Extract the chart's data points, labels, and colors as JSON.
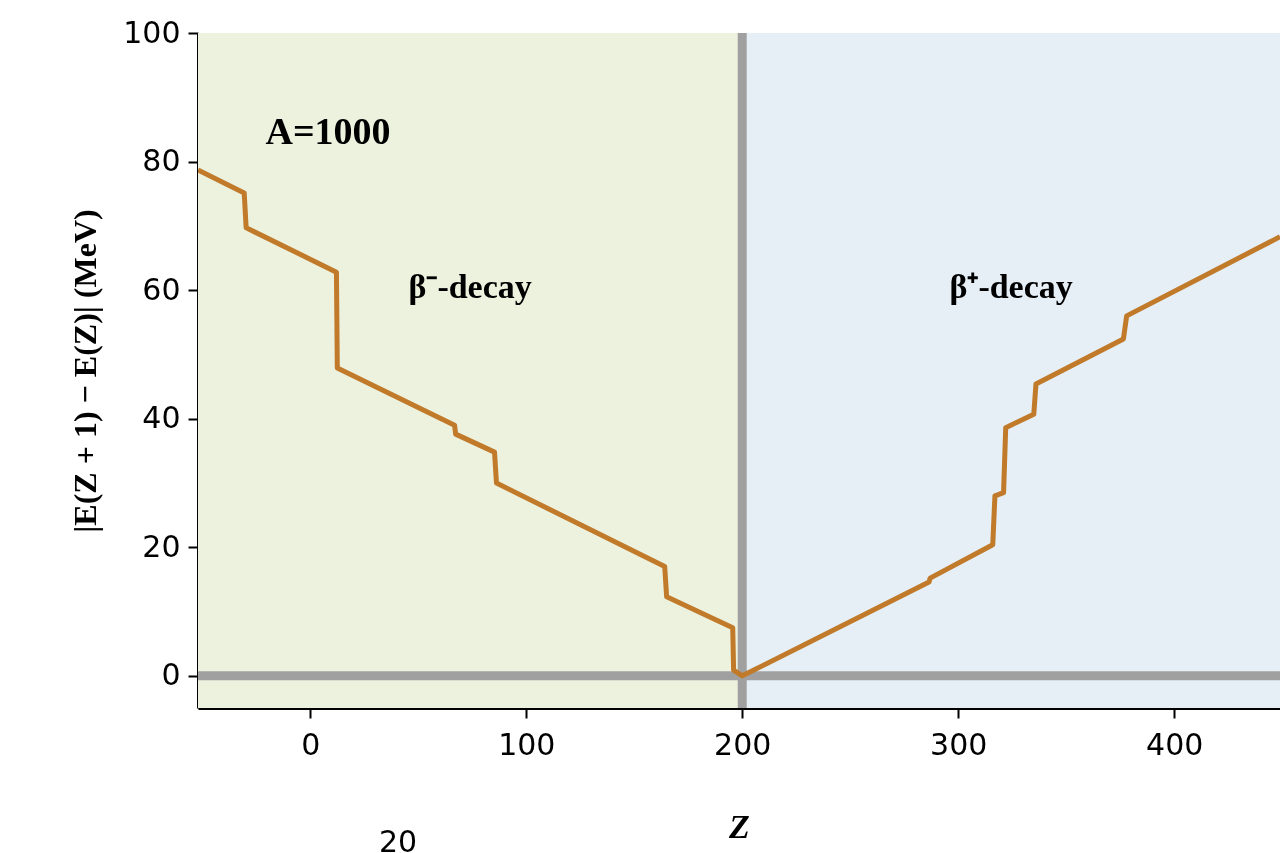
{
  "chart_data": {
    "type": "line",
    "xlabel": "Z",
    "ylabel": "|E(Z + 1) − E(Z)| (MeV)",
    "xlim": [
      -52,
      449
    ],
    "xticks": [
      0,
      100,
      200,
      300,
      400
    ],
    "ylim": [
      -5,
      100
    ],
    "yticks": [
      0,
      20,
      40,
      60,
      80,
      100
    ],
    "marker": "none",
    "line_style": "solid",
    "series": [
      {
        "color": "#c07a2a",
        "x": [
          -52,
          -30.6,
          -29.7,
          12.1,
          12.5,
          66.8,
          67.3,
          85.3,
          86.2,
          164.1,
          165,
          195.6,
          196,
          200,
          286.5,
          287,
          316,
          317,
          321,
          322,
          335,
          336,
          376.5,
          378,
          449
        ],
        "values": [
          78.7,
          75.1,
          69.7,
          62.8,
          47.9,
          39.0,
          37.6,
          34.8,
          30.0,
          17.0,
          12.3,
          7.5,
          0.9,
          0,
          14.6,
          15.2,
          20.4,
          28.0,
          28.5,
          38.6,
          40.7,
          45.4,
          52.4,
          56.0,
          68.3
        ]
      }
    ],
    "bands": [
      {
        "axis": "x",
        "from": -52,
        "to": 200,
        "label": "β⁻-decay",
        "color": "#edf2df"
      },
      {
        "axis": "x",
        "from": 200,
        "to": 449,
        "label": "β⁺-decay",
        "color": "#e6eff6"
      }
    ],
    "ref_lines": [
      {
        "axis": "x",
        "value": 200,
        "color": "#a0a0a0"
      },
      {
        "axis": "y",
        "value": 0,
        "color": "#a0a0a0"
      }
    ],
    "annotations": [
      "A=1000",
      "20"
    ]
  }
}
